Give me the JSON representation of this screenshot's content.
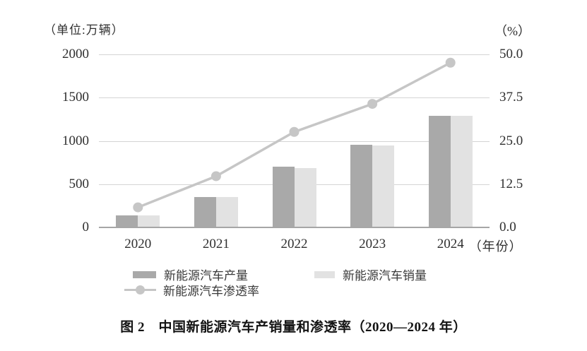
{
  "colors": {
    "background": "#ffffff",
    "grid": "#d4d4d4",
    "axis_line": "#a6a6a6",
    "text": "#2f2f2f",
    "production_bar": "#a9a9a9",
    "sales_bar": "#e2e2e2",
    "penetration_line": "#c6c6c6"
  },
  "chart_data": {
    "type": "bar",
    "subtype": "grouped-bars-with-line-dual-axis",
    "title": "图 2　中国新能源汽车产销量和渗透率（2020—2024 年）",
    "categories": [
      "2020",
      "2021",
      "2022",
      "2023",
      "2024"
    ],
    "series": [
      {
        "name": "新能源汽车产量",
        "kind": "bar",
        "axis": "left",
        "color": "#a9a9a9",
        "values": [
          136.6,
          354.5,
          705.8,
          958.7,
          1288.8
        ]
      },
      {
        "name": "新能源汽车销量",
        "kind": "bar",
        "axis": "left",
        "color": "#e2e2e2",
        "values": [
          136.7,
          352.1,
          688.7,
          949.5,
          1286.6
        ]
      },
      {
        "name": "新能源汽车渗透率",
        "kind": "line",
        "axis": "right",
        "color": "#c6c6c6",
        "values": [
          5.8,
          14.8,
          27.6,
          35.7,
          47.6
        ]
      }
    ],
    "left_axis": {
      "unit_label": "（单位:万辆）",
      "min": 0,
      "max": 2000,
      "tick_labels": [
        "2000",
        "1500",
        "1000",
        "500",
        "0"
      ]
    },
    "right_axis": {
      "unit_label": "（%）",
      "min": 0,
      "max": 50,
      "tick_labels": [
        "50.0",
        "37.5",
        "25.0",
        "12.5",
        "0.0"
      ]
    },
    "x_axis": {
      "tick_labels": [
        "2020",
        "2021",
        "2022",
        "2023",
        "2024"
      ],
      "label_suffix": "（年份）"
    },
    "grid": true,
    "legend_position": "bottom",
    "legend": [
      "新能源汽车产量",
      "新能源汽车销量",
      "新能源汽车渗透率"
    ]
  },
  "caption": "图 2　中国新能源汽车产销量和渗透率（2020—2024 年）"
}
